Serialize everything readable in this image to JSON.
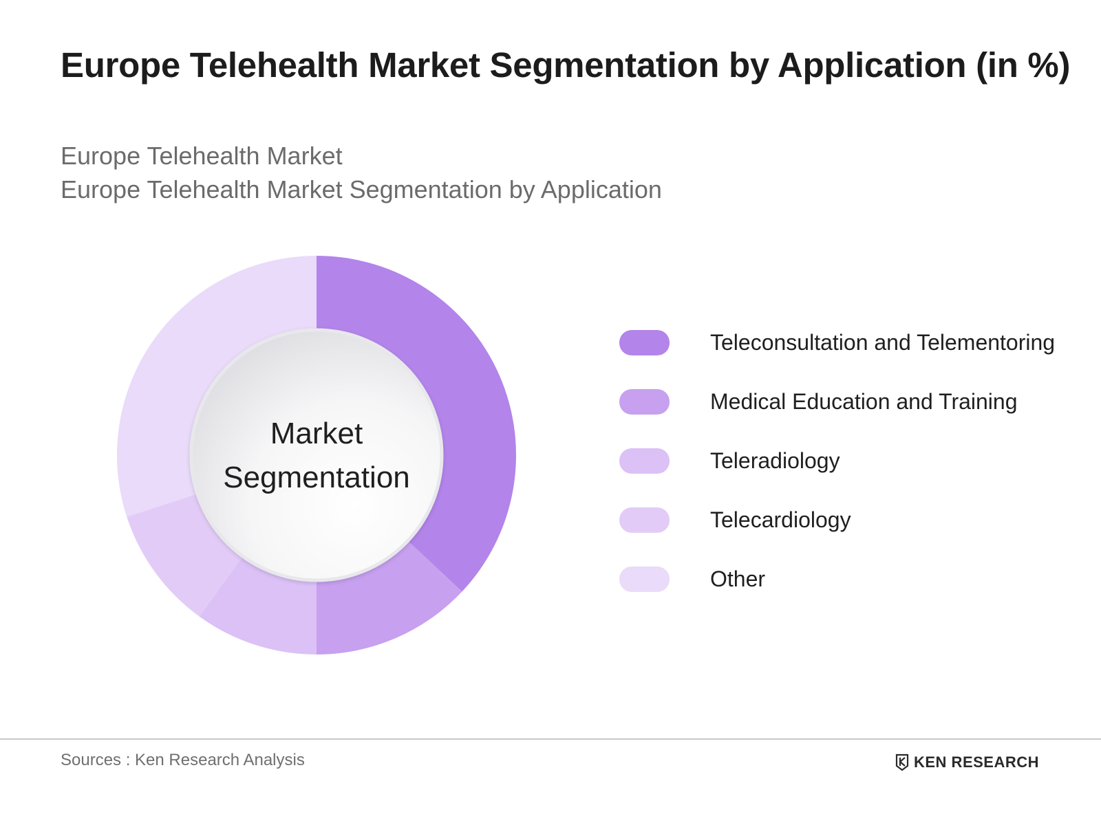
{
  "title": "Europe Telehealth Market Segmentation by Application (in %)",
  "subtitle": {
    "line1": "Europe Telehealth Market",
    "line2": "Europe Telehealth Market Segmentation by Application"
  },
  "chart_data": {
    "type": "pie",
    "center_label": [
      "Market",
      "Segmentation"
    ],
    "categories": [
      "Teleconsultation and Telementoring",
      "Medical Education and Training",
      "Teleradiology",
      "Telecardiology",
      "Other"
    ],
    "values": [
      37,
      13,
      10,
      10,
      30
    ],
    "colors": [
      "#b384ea",
      "#c7a0ef",
      "#dbc1f6",
      "#e2ccf7",
      "#e9dbf9"
    ]
  },
  "legend": [
    {
      "label": "Teleconsultation and Telementoring",
      "color": "#b384ea"
    },
    {
      "label": "Medical Education and Training",
      "color": "#c7a0ef"
    },
    {
      "label": "Teleradiology",
      "color": "#dbc1f6"
    },
    {
      "label": "Telecardiology",
      "color": "#e2ccf7"
    },
    {
      "label": "Other",
      "color": "#e9dbf9"
    }
  ],
  "footer": {
    "source": "Sources : Ken Research Analysis",
    "logo_text": "KEN RESEARCH",
    "logo_icon": "ken-research-logo-icon"
  }
}
